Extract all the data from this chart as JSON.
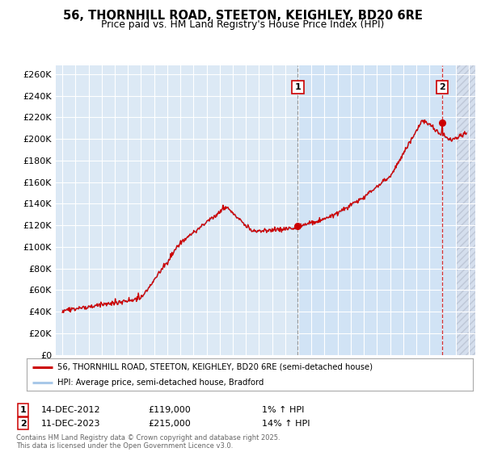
{
  "title1": "56, THORNHILL ROAD, STEETON, KEIGHLEY, BD20 6RE",
  "title2": "Price paid vs. HM Land Registry's House Price Index (HPI)",
  "ytick_values": [
    0,
    20000,
    40000,
    60000,
    80000,
    100000,
    120000,
    140000,
    160000,
    180000,
    200000,
    220000,
    240000,
    260000
  ],
  "ytick_labels": [
    "£0",
    "£20K",
    "£40K",
    "£60K",
    "£80K",
    "£100K",
    "£120K",
    "£140K",
    "£160K",
    "£180K",
    "£200K",
    "£220K",
    "£240K",
    "£260K"
  ],
  "ylim": [
    0,
    268000
  ],
  "xlim_start": 1994.5,
  "xlim_end": 2026.5,
  "bg_color": "#dce9f5",
  "fig_bg": "#ffffff",
  "grid_color": "#ffffff",
  "red_color": "#cc0000",
  "blue_color": "#a8c8e8",
  "sale1_x": 2012.958,
  "sale1_y": 119000,
  "sale2_x": 2023.958,
  "sale2_y": 215000,
  "legend_line1": "56, THORNHILL ROAD, STEETON, KEIGHLEY, BD20 6RE (semi-detached house)",
  "legend_line2": "HPI: Average price, semi-detached house, Bradford",
  "ann1_date": "14-DEC-2012",
  "ann1_price": "£119,000",
  "ann1_hpi": "1% ↑ HPI",
  "ann2_date": "11-DEC-2023",
  "ann2_price": "£215,000",
  "ann2_hpi": "14% ↑ HPI",
  "footnote": "Contains HM Land Registry data © Crown copyright and database right 2025.\nThis data is licensed under the Open Government Licence v3.0.",
  "highlight_start": 2012.958,
  "hatch_start": 2025.0
}
